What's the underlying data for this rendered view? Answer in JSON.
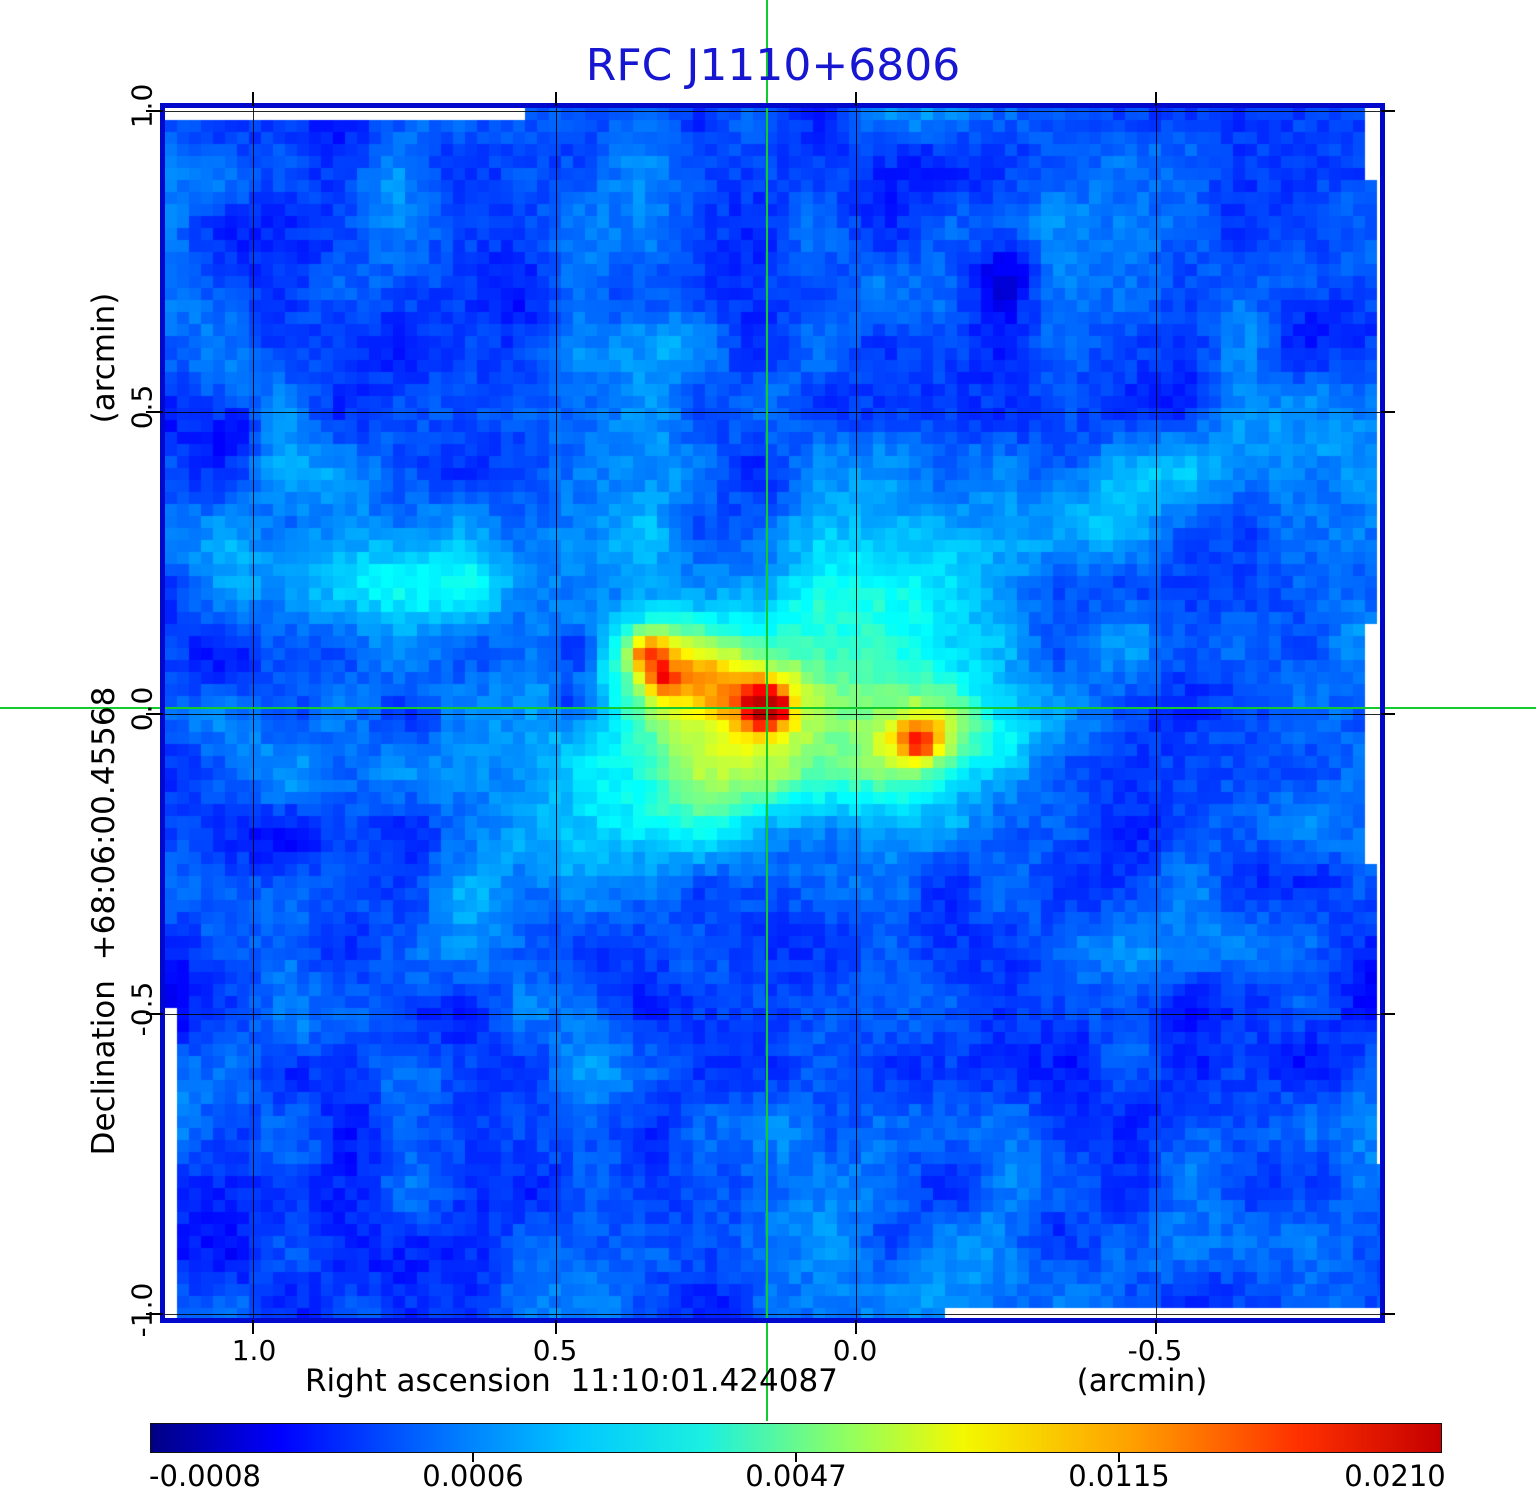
{
  "title": {
    "text": "RFC J1110+6806",
    "color": "#1717d2"
  },
  "axes": {
    "y": {
      "unit_label": "(arcmin)",
      "axis_label": "Declination  +68:06:00.45568",
      "ticks": [
        "1.0",
        "0.5",
        "0.0",
        "-0.5",
        "-1.0"
      ]
    },
    "x": {
      "unit_label": "(arcmin)",
      "axis_label": "Right ascension  11:10:01.424087",
      "ticks": [
        "1.0",
        "0.5",
        "0.0",
        "-0.5"
      ]
    }
  },
  "colorbar": {
    "tick_labels": [
      "-0.0008",
      "0.0006",
      "0.0047",
      "0.0115",
      "0.0210"
    ]
  },
  "crosshair": {
    "color": "#12cb2c"
  },
  "frame_color": "#0008cc",
  "chart_data": {
    "type": "heatmap",
    "title": "RFC J1110+6806",
    "xlabel": "Right ascension  11:10:01.424087  (arcmin)",
    "ylabel": "Declination  +68:06:00.45568  (arcmin)",
    "x_ticks_arcmin": [
      1.0,
      0.5,
      0.0,
      -0.5
    ],
    "y_ticks_arcmin": [
      1.0,
      0.5,
      0.0,
      -0.5,
      -1.0
    ],
    "xlim_arcmin": [
      1.15,
      -0.87
    ],
    "ylim_arcmin": [
      -1.01,
      1.01
    ],
    "grid": true,
    "colormap": "jet",
    "colorbar_ticks": [
      -0.0008,
      0.0006,
      0.0047,
      0.0115,
      0.021
    ],
    "colorbar_position": "bottom",
    "crosshair_at_arcmin": [
      0.0,
      0.0
    ],
    "background_level": "~0.0006 (blue noise field)",
    "sources": [
      {
        "name": "core",
        "ra_offset_arcmin": 0.0,
        "dec_offset_arcmin": 0.0,
        "peak": 0.021,
        "morphology": "compact bright red core at phase center (green crosshair)"
      },
      {
        "name": "secondary-component",
        "ra_offset_arcmin": -0.1,
        "dec_offset_arcmin": -0.05,
        "peak": 0.013,
        "morphology": "compact orange-red component SE of core with yellow halo"
      },
      {
        "name": "extended-lobe",
        "ra_offset_arcmin": 0.29,
        "dec_offset_arcmin": 0.09,
        "peak": 0.009,
        "morphology": "extended yellow lobe NW of core containing two orange knots"
      },
      {
        "name": "diffuse-halo",
        "ra_offset_arcmin": 0.05,
        "dec_offset_arcmin": 0.0,
        "peak": 0.004,
        "morphology": "cyan-green diffuse envelope surrounding all components"
      },
      {
        "name": "negative-sidelobe",
        "ra_offset_arcmin": 0.47,
        "dec_offset_arcmin": 0.1,
        "peak": -0.0008,
        "morphology": "dark navy depressions just W of the lobe"
      }
    ]
  }
}
